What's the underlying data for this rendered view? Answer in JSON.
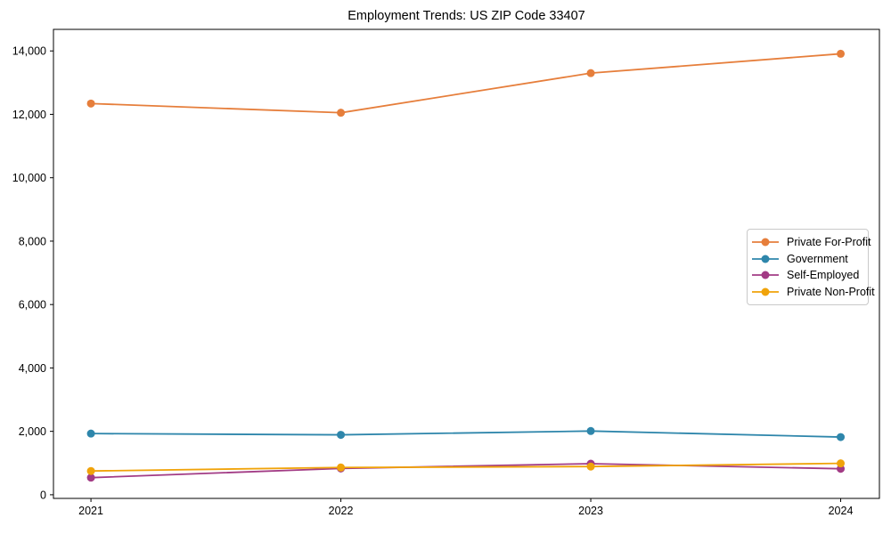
{
  "title": "Employment Trends: US ZIP Code 33407",
  "chart_data": {
    "type": "line",
    "title": "Employment Trends: US ZIP Code 33407",
    "x": [
      2021,
      2022,
      2023,
      2024
    ],
    "x_tick_labels": [
      "2021",
      "2022",
      "2023",
      "2024"
    ],
    "yticks": [
      0,
      2000,
      4000,
      6000,
      8000,
      10000,
      12000,
      14000
    ],
    "ytick_labels": [
      "0",
      "2,000",
      "4,000",
      "6,000",
      "8,000",
      "10,000",
      "12,000",
      "14,000"
    ],
    "xlim": [
      2020.85,
      2024.155
    ],
    "ylim": [
      -115,
      14680
    ],
    "grid": false,
    "legend_position": "center right",
    "marker": "circle",
    "series": [
      {
        "name": "Private For-Profit",
        "color": "#E67E3B",
        "values": [
          12340,
          12050,
          13300,
          13910
        ]
      },
      {
        "name": "Government",
        "color": "#2E86AB",
        "values": [
          1930,
          1890,
          2010,
          1820
        ]
      },
      {
        "name": "Self-Employed",
        "color": "#A23B85",
        "values": [
          540,
          830,
          980,
          820
        ]
      },
      {
        "name": "Private Non-Profit",
        "color": "#F0A30A",
        "values": [
          750,
          860,
          890,
          990
        ]
      }
    ]
  }
}
